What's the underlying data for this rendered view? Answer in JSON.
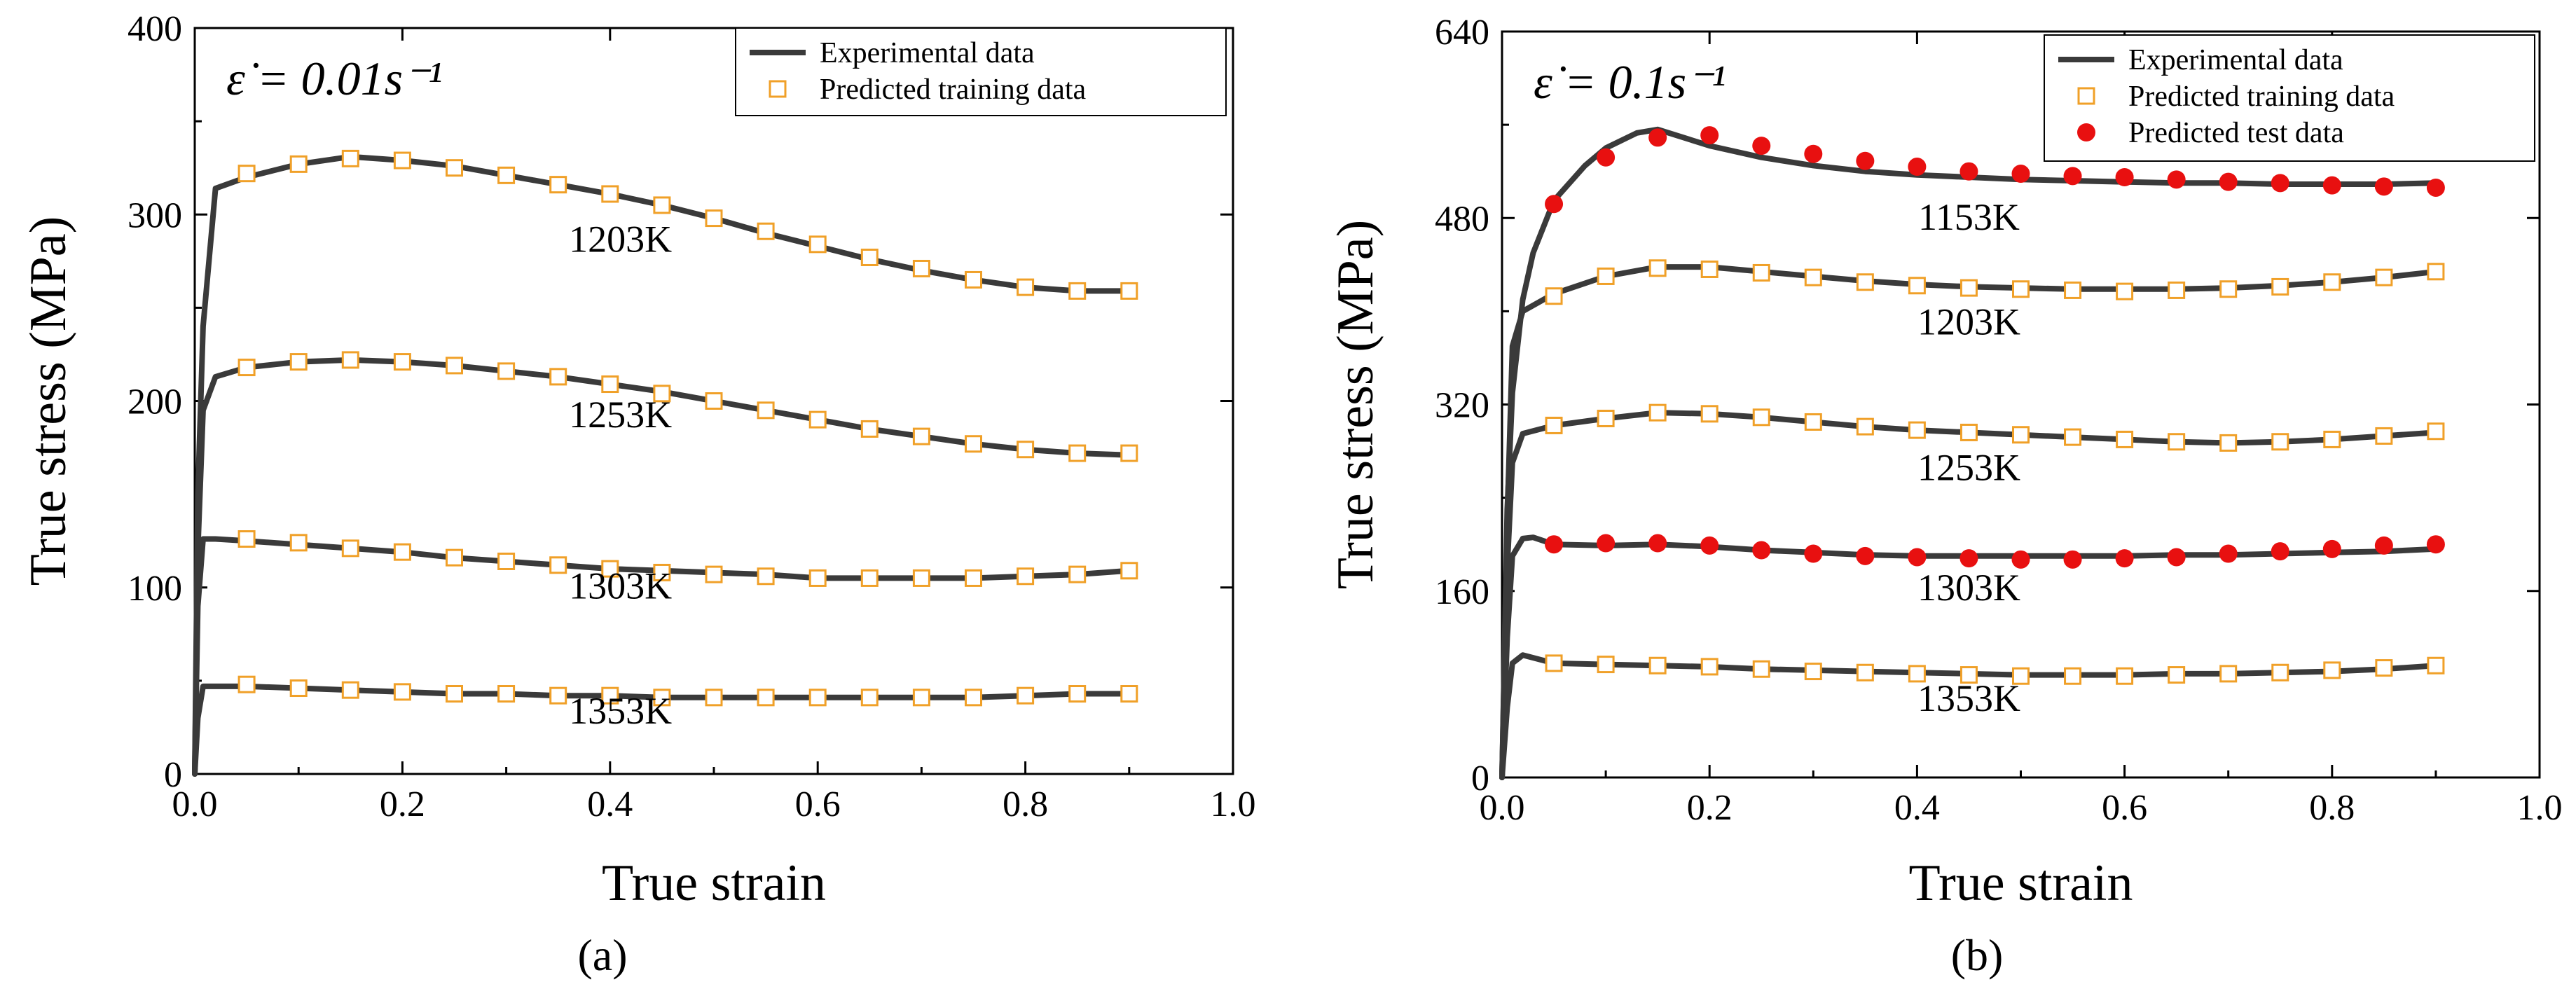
{
  "figure": {
    "panel_a_label": "(a)",
    "panel_b_label": "(b)"
  },
  "chart_data": [
    {
      "type": "line",
      "panel": "(a)",
      "annotation": "ε̇ = 0.01s⁻¹",
      "xlabel": "True strain",
      "ylabel": "True stress (MPa)",
      "xlim": [
        0.0,
        1.0
      ],
      "ylim": [
        0,
        400
      ],
      "xticks": [
        0.0,
        0.2,
        0.4,
        0.6,
        0.8,
        1.0
      ],
      "xtick_labels": [
        "0.0",
        "0.2",
        "0.4",
        "0.6",
        "0.8",
        "1.0"
      ],
      "yticks": [
        0,
        100,
        200,
        300,
        400
      ],
      "ytick_labels": [
        "0",
        "100",
        "200",
        "300",
        "400"
      ],
      "legend": [
        {
          "label": "Experimental data",
          "marker": "line",
          "color": "#3a3a3a"
        },
        {
          "label": "Predicted training data",
          "marker": "open-square",
          "color": "#f0a028"
        }
      ],
      "series": [
        {
          "name": "1203K",
          "label_at": [
            0.41,
            280
          ],
          "experimental": {
            "x": [
              0,
              0.003,
              0.008,
              0.02,
              0.05,
              0.1,
              0.15,
              0.2,
              0.25,
              0.3,
              0.35,
              0.4,
              0.45,
              0.5,
              0.55,
              0.6,
              0.65,
              0.7,
              0.75,
              0.8,
              0.85,
              0.9
            ],
            "y": [
              0,
              150,
              240,
              314,
              320,
              327,
              331,
              329,
              326,
              321,
              316,
              311,
              305,
              298,
              290,
              283,
              276,
              270,
              265,
              261,
              259,
              259
            ]
          },
          "predicted_training": {
            "x": [
              0.05,
              0.1,
              0.15,
              0.2,
              0.25,
              0.3,
              0.35,
              0.4,
              0.45,
              0.5,
              0.55,
              0.6,
              0.65,
              0.7,
              0.75,
              0.8,
              0.85,
              0.9
            ],
            "y": [
              322,
              327,
              330,
              329,
              325,
              321,
              316,
              311,
              305,
              298,
              291,
              284,
              277,
              271,
              265,
              261,
              259,
              259
            ]
          }
        },
        {
          "name": "1253K",
          "label_at": [
            0.41,
            186
          ],
          "experimental": {
            "x": [
              0,
              0.003,
              0.008,
              0.02,
              0.05,
              0.1,
              0.15,
              0.2,
              0.25,
              0.3,
              0.35,
              0.4,
              0.45,
              0.5,
              0.55,
              0.6,
              0.65,
              0.7,
              0.75,
              0.8,
              0.85,
              0.9
            ],
            "y": [
              0,
              120,
              195,
              213,
              218,
              221,
              222,
              221,
              219,
              216,
              213,
              209,
              205,
              200,
              195,
              190,
              185,
              181,
              177,
              174,
              172,
              171
            ]
          },
          "predicted_training": {
            "x": [
              0.05,
              0.1,
              0.15,
              0.2,
              0.25,
              0.3,
              0.35,
              0.4,
              0.45,
              0.5,
              0.55,
              0.6,
              0.65,
              0.7,
              0.75,
              0.8,
              0.85,
              0.9
            ],
            "y": [
              218,
              221,
              222,
              221,
              219,
              216,
              213,
              209,
              204,
              200,
              195,
              190,
              185,
              181,
              177,
              174,
              172,
              172
            ]
          }
        },
        {
          "name": "1303K",
          "label_at": [
            0.41,
            94
          ],
          "experimental": {
            "x": [
              0,
              0.003,
              0.008,
              0.02,
              0.05,
              0.1,
              0.15,
              0.2,
              0.25,
              0.3,
              0.35,
              0.4,
              0.45,
              0.5,
              0.55,
              0.6,
              0.65,
              0.7,
              0.75,
              0.8,
              0.85,
              0.9
            ],
            "y": [
              0,
              90,
              126,
              126,
              125,
              123,
              121,
              119,
              116,
              114,
              112,
              110,
              109,
              108,
              107,
              105,
              105,
              105,
              105,
              106,
              107,
              109
            ]
          },
          "predicted_training": {
            "x": [
              0.05,
              0.1,
              0.15,
              0.2,
              0.25,
              0.3,
              0.35,
              0.4,
              0.45,
              0.5,
              0.55,
              0.6,
              0.65,
              0.7,
              0.75,
              0.8,
              0.85,
              0.9
            ],
            "y": [
              126,
              124,
              121,
              119,
              116,
              114,
              112,
              110,
              108,
              107,
              106,
              105,
              105,
              105,
              105,
              106,
              107,
              109
            ]
          }
        },
        {
          "name": "1353K",
          "label_at": [
            0.41,
            27
          ],
          "experimental": {
            "x": [
              0,
              0.003,
              0.008,
              0.02,
              0.05,
              0.1,
              0.15,
              0.2,
              0.25,
              0.3,
              0.35,
              0.4,
              0.45,
              0.5,
              0.55,
              0.6,
              0.65,
              0.7,
              0.75,
              0.8,
              0.85,
              0.9
            ],
            "y": [
              0,
              30,
              47,
              47,
              47,
              46,
              45,
              44,
              43,
              43,
              42,
              42,
              41,
              41,
              41,
              41,
              41,
              41,
              41,
              42,
              43,
              43
            ]
          },
          "predicted_training": {
            "x": [
              0.05,
              0.1,
              0.15,
              0.2,
              0.25,
              0.3,
              0.35,
              0.4,
              0.45,
              0.5,
              0.55,
              0.6,
              0.65,
              0.7,
              0.75,
              0.8,
              0.85,
              0.9
            ],
            "y": [
              48,
              46,
              45,
              44,
              43,
              43,
              42,
              42,
              41,
              41,
              41,
              41,
              41,
              41,
              41,
              42,
              43,
              43
            ]
          }
        }
      ]
    },
    {
      "type": "line",
      "panel": "(b)",
      "annotation": "ε̇ = 0.1s⁻¹",
      "xlabel": "True strain",
      "ylabel": "True stress (MPa)",
      "xlim": [
        0.0,
        1.0
      ],
      "ylim": [
        0,
        640
      ],
      "xticks": [
        0.0,
        0.2,
        0.4,
        0.6,
        0.8,
        1.0
      ],
      "xtick_labels": [
        "0.0",
        "0.2",
        "0.4",
        "0.6",
        "0.8",
        "1.0"
      ],
      "yticks": [
        0,
        160,
        320,
        480,
        640
      ],
      "ytick_labels": [
        "0",
        "160",
        "320",
        "480",
        "640"
      ],
      "legend": [
        {
          "label": "Experimental data",
          "marker": "line",
          "color": "#3a3a3a"
        },
        {
          "label": "Predicted training data",
          "marker": "open-square",
          "color": "#f0a028"
        },
        {
          "label": "Predicted test data",
          "marker": "filled-circle",
          "color": "#e81010"
        }
      ],
      "series": [
        {
          "name": "1153K",
          "label_at": [
            0.45,
            470
          ],
          "experimental": {
            "x": [
              0,
              0.005,
              0.01,
              0.02,
              0.03,
              0.05,
              0.08,
              0.1,
              0.13,
              0.15,
              0.2,
              0.25,
              0.3,
              0.35,
              0.4,
              0.45,
              0.5,
              0.55,
              0.6,
              0.65,
              0.7,
              0.75,
              0.8,
              0.85,
              0.9
            ],
            "y": [
              0,
              230,
              330,
              410,
              450,
              495,
              525,
              540,
              553,
              556,
              542,
              532,
              525,
              520,
              517,
              515,
              513,
              512,
              511,
              510,
              510,
              509,
              509,
              509,
              510
            ]
          },
          "predicted_test": {
            "x": [
              0.05,
              0.1,
              0.15,
              0.2,
              0.25,
              0.3,
              0.35,
              0.4,
              0.45,
              0.5,
              0.55,
              0.6,
              0.65,
              0.7,
              0.75,
              0.8,
              0.85,
              0.9
            ],
            "y": [
              492,
              532,
              549,
              551,
              542,
              535,
              529,
              524,
              520,
              518,
              516,
              515,
              513,
              511,
              510,
              508,
              507,
              506
            ]
          }
        },
        {
          "name": "1203K",
          "label_at": [
            0.45,
            380
          ],
          "experimental": {
            "x": [
              0,
              0.005,
              0.01,
              0.02,
              0.05,
              0.1,
              0.15,
              0.2,
              0.25,
              0.3,
              0.35,
              0.4,
              0.45,
              0.5,
              0.55,
              0.6,
              0.65,
              0.7,
              0.75,
              0.8,
              0.85,
              0.9
            ],
            "y": [
              0,
              220,
              370,
              400,
              415,
              430,
              438,
              438,
              434,
              430,
              426,
              423,
              421,
              420,
              419,
              419,
              419,
              420,
              422,
              425,
              429,
              434
            ]
          },
          "predicted_training": {
            "x": [
              0.05,
              0.1,
              0.15,
              0.2,
              0.25,
              0.3,
              0.35,
              0.4,
              0.45,
              0.5,
              0.55,
              0.6,
              0.65,
              0.7,
              0.75,
              0.8,
              0.85,
              0.9
            ],
            "y": [
              413,
              430,
              437,
              436,
              433,
              429,
              425,
              422,
              420,
              419,
              418,
              417,
              418,
              419,
              421,
              425,
              429,
              434
            ]
          }
        },
        {
          "name": "1253K",
          "label_at": [
            0.45,
            255
          ],
          "experimental": {
            "x": [
              0,
              0.005,
              0.01,
              0.02,
              0.05,
              0.1,
              0.15,
              0.2,
              0.25,
              0.3,
              0.35,
              0.4,
              0.45,
              0.5,
              0.55,
              0.6,
              0.65,
              0.7,
              0.75,
              0.8,
              0.85,
              0.9
            ],
            "y": [
              0,
              180,
              270,
              295,
              302,
              308,
              313,
              312,
              309,
              305,
              301,
              298,
              296,
              294,
              292,
              290,
              288,
              287,
              288,
              290,
              293,
              296
            ]
          },
          "predicted_training": {
            "x": [
              0.05,
              0.1,
              0.15,
              0.2,
              0.25,
              0.3,
              0.35,
              0.4,
              0.45,
              0.5,
              0.55,
              0.6,
              0.65,
              0.7,
              0.75,
              0.8,
              0.85,
              0.9
            ],
            "y": [
              302,
              308,
              313,
              312,
              309,
              305,
              301,
              298,
              296,
              294,
              292,
              290,
              288,
              287,
              288,
              290,
              293,
              297
            ]
          }
        },
        {
          "name": "1303K",
          "label_at": [
            0.45,
            152
          ],
          "experimental": {
            "x": [
              0,
              0.005,
              0.01,
              0.02,
              0.03,
              0.05,
              0.1,
              0.15,
              0.2,
              0.25,
              0.3,
              0.35,
              0.4,
              0.45,
              0.5,
              0.55,
              0.6,
              0.65,
              0.7,
              0.75,
              0.8,
              0.85,
              0.9
            ],
            "y": [
              0,
              120,
              190,
              205,
              206,
              200,
              199,
              200,
              198,
              195,
              193,
              191,
              190,
              190,
              190,
              190,
              190,
              191,
              191,
              192,
              193,
              194,
              196
            ]
          },
          "predicted_test": {
            "x": [
              0.05,
              0.1,
              0.15,
              0.2,
              0.25,
              0.3,
              0.35,
              0.4,
              0.45,
              0.5,
              0.55,
              0.6,
              0.65,
              0.7,
              0.75,
              0.8,
              0.85,
              0.9
            ],
            "y": [
              200,
              201,
              201,
              199,
              195,
              192,
              190,
              189,
              188,
              187,
              187,
              188,
              189,
              192,
              194,
              196,
              199,
              200
            ]
          }
        },
        {
          "name": "1353K",
          "label_at": [
            0.45,
            57
          ],
          "experimental": {
            "x": [
              0,
              0.005,
              0.01,
              0.02,
              0.05,
              0.1,
              0.15,
              0.2,
              0.25,
              0.3,
              0.35,
              0.4,
              0.45,
              0.5,
              0.55,
              0.6,
              0.65,
              0.7,
              0.75,
              0.8,
              0.85,
              0.9
            ],
            "y": [
              0,
              60,
              98,
              105,
              98,
              97,
              96,
              95,
              93,
              92,
              91,
              90,
              89,
              88,
              88,
              88,
              89,
              89,
              90,
              91,
              93,
              96
            ]
          },
          "predicted_training": {
            "x": [
              0.05,
              0.1,
              0.15,
              0.2,
              0.25,
              0.3,
              0.35,
              0.4,
              0.45,
              0.5,
              0.55,
              0.6,
              0.65,
              0.7,
              0.75,
              0.8,
              0.85,
              0.9
            ],
            "y": [
              98,
              97,
              96,
              95,
              93,
              91,
              90,
              89,
              88,
              87,
              87,
              87,
              88,
              89,
              90,
              92,
              94,
              96
            ]
          }
        }
      ]
    }
  ]
}
